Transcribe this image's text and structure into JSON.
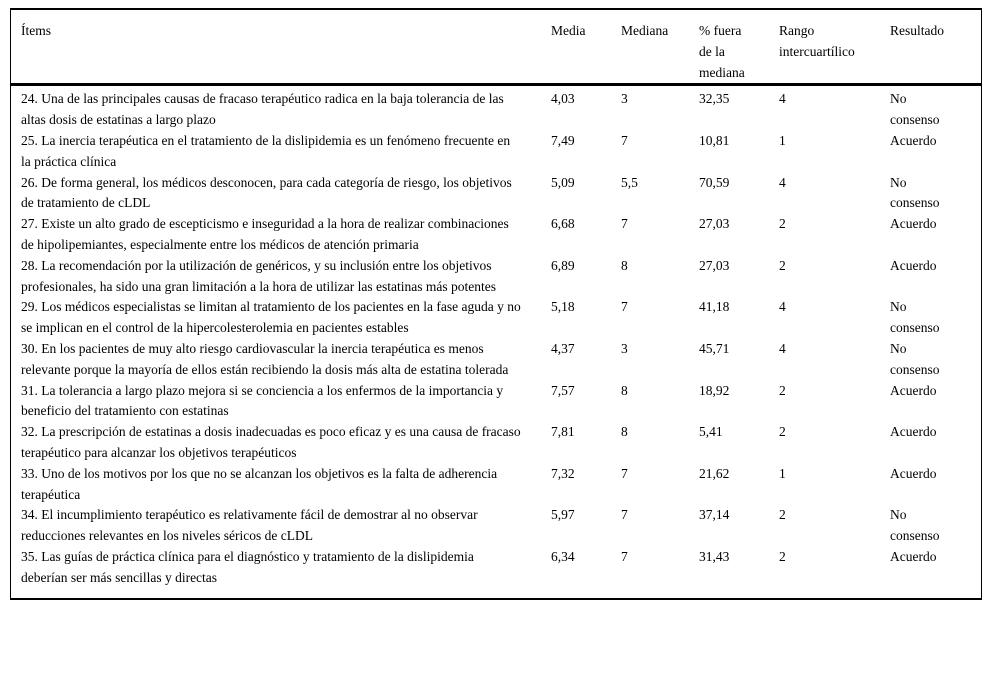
{
  "table": {
    "columns": [
      "Ítems",
      "Media",
      "Mediana",
      "% fuera de la mediana",
      "Rango intercuartílico",
      "Resultado"
    ],
    "rows": [
      {
        "item": "24. Una de las principales causas de fracaso terapéutico radica en la baja tolerancia de las altas dosis de estatinas a largo plazo",
        "media": "4,03",
        "mediana": "3",
        "pct_fuera_mediana": "32,35",
        "rango_intercuartilico": "4",
        "resultado": "No consenso"
      },
      {
        "item": "25. La inercia terapéutica en el tratamiento de la dislipidemia es un fenómeno frecuente en la práctica clínica",
        "media": "7,49",
        "mediana": "7",
        "pct_fuera_mediana": "10,81",
        "rango_intercuartilico": "1",
        "resultado": "Acuerdo"
      },
      {
        "item": "26. De forma general, los médicos desconocen, para cada categoría de riesgo, los objetivos de tratamiento de cLDL",
        "media": "5,09",
        "mediana": "5,5",
        "pct_fuera_mediana": "70,59",
        "rango_intercuartilico": "4",
        "resultado": "No consenso"
      },
      {
        "item": "27. Existe un alto grado de escepticismo e inseguridad a la hora de realizar combinaciones de hipolipemiantes, especialmente entre los médicos de atención primaria",
        "media": "6,68",
        "mediana": "7",
        "pct_fuera_mediana": "27,03",
        "rango_intercuartilico": "2",
        "resultado": "Acuerdo"
      },
      {
        "item": "28. La recomendación por la utilización de genéricos, y su inclusión entre los objetivos profesionales, ha sido una gran limitación a la hora de utilizar las estatinas más potentes",
        "media": "6,89",
        "mediana": "8",
        "pct_fuera_mediana": "27,03",
        "rango_intercuartilico": "2",
        "resultado": "Acuerdo"
      },
      {
        "item": "29. Los médicos especialistas se limitan al tratamiento de los pacientes en la fase aguda y no se implican en el control de la hipercolesterolemia en pacientes estables",
        "media": "5,18",
        "mediana": "7",
        "pct_fuera_mediana": "41,18",
        "rango_intercuartilico": "4",
        "resultado": "No consenso"
      },
      {
        "item": "30. En los pacientes de muy alto riesgo cardiovascular la inercia terapéutica es menos relevante porque la mayoría de ellos están recibiendo la dosis más alta de estatina tolerada",
        "media": "4,37",
        "mediana": "3",
        "pct_fuera_mediana": "45,71",
        "rango_intercuartilico": "4",
        "resultado": "No consenso"
      },
      {
        "item": "31. La tolerancia a largo plazo mejora si se conciencia a los enfermos de la importancia y beneficio del tratamiento con estatinas",
        "media": "7,57",
        "mediana": "8",
        "pct_fuera_mediana": "18,92",
        "rango_intercuartilico": "2",
        "resultado": "Acuerdo"
      },
      {
        "item": "32. La prescripción de estatinas a dosis inadecuadas es poco eficaz y es una causa de fracaso terapéutico para alcanzar los objetivos terapéuticos",
        "media": "7,81",
        "mediana": "8",
        "pct_fuera_mediana": "5,41",
        "rango_intercuartilico": "2",
        "resultado": "Acuerdo"
      },
      {
        "item": "33. Uno de los motivos por los que no se alcanzan los objetivos es la falta de adherencia terapéutica",
        "media": "7,32",
        "mediana": "7",
        "pct_fuera_mediana": "21,62",
        "rango_intercuartilico": "1",
        "resultado": "Acuerdo"
      },
      {
        "item": "34. El incumplimiento terapéutico es relativamente fácil de demostrar al no observar reducciones relevantes en los niveles séricos de cLDL",
        "media": "5,97",
        "mediana": "7",
        "pct_fuera_mediana": "37,14",
        "rango_intercuartilico": "2",
        "resultado": "No consenso"
      },
      {
        "item": "35. Las guías de práctica clínica para el diagnóstico y tratamiento de la dislipidemia deberían ser más sencillas y directas",
        "media": "6,34",
        "mediana": "7",
        "pct_fuera_mediana": "31,43",
        "rango_intercuartilico": "2",
        "resultado": "Acuerdo"
      }
    ]
  }
}
